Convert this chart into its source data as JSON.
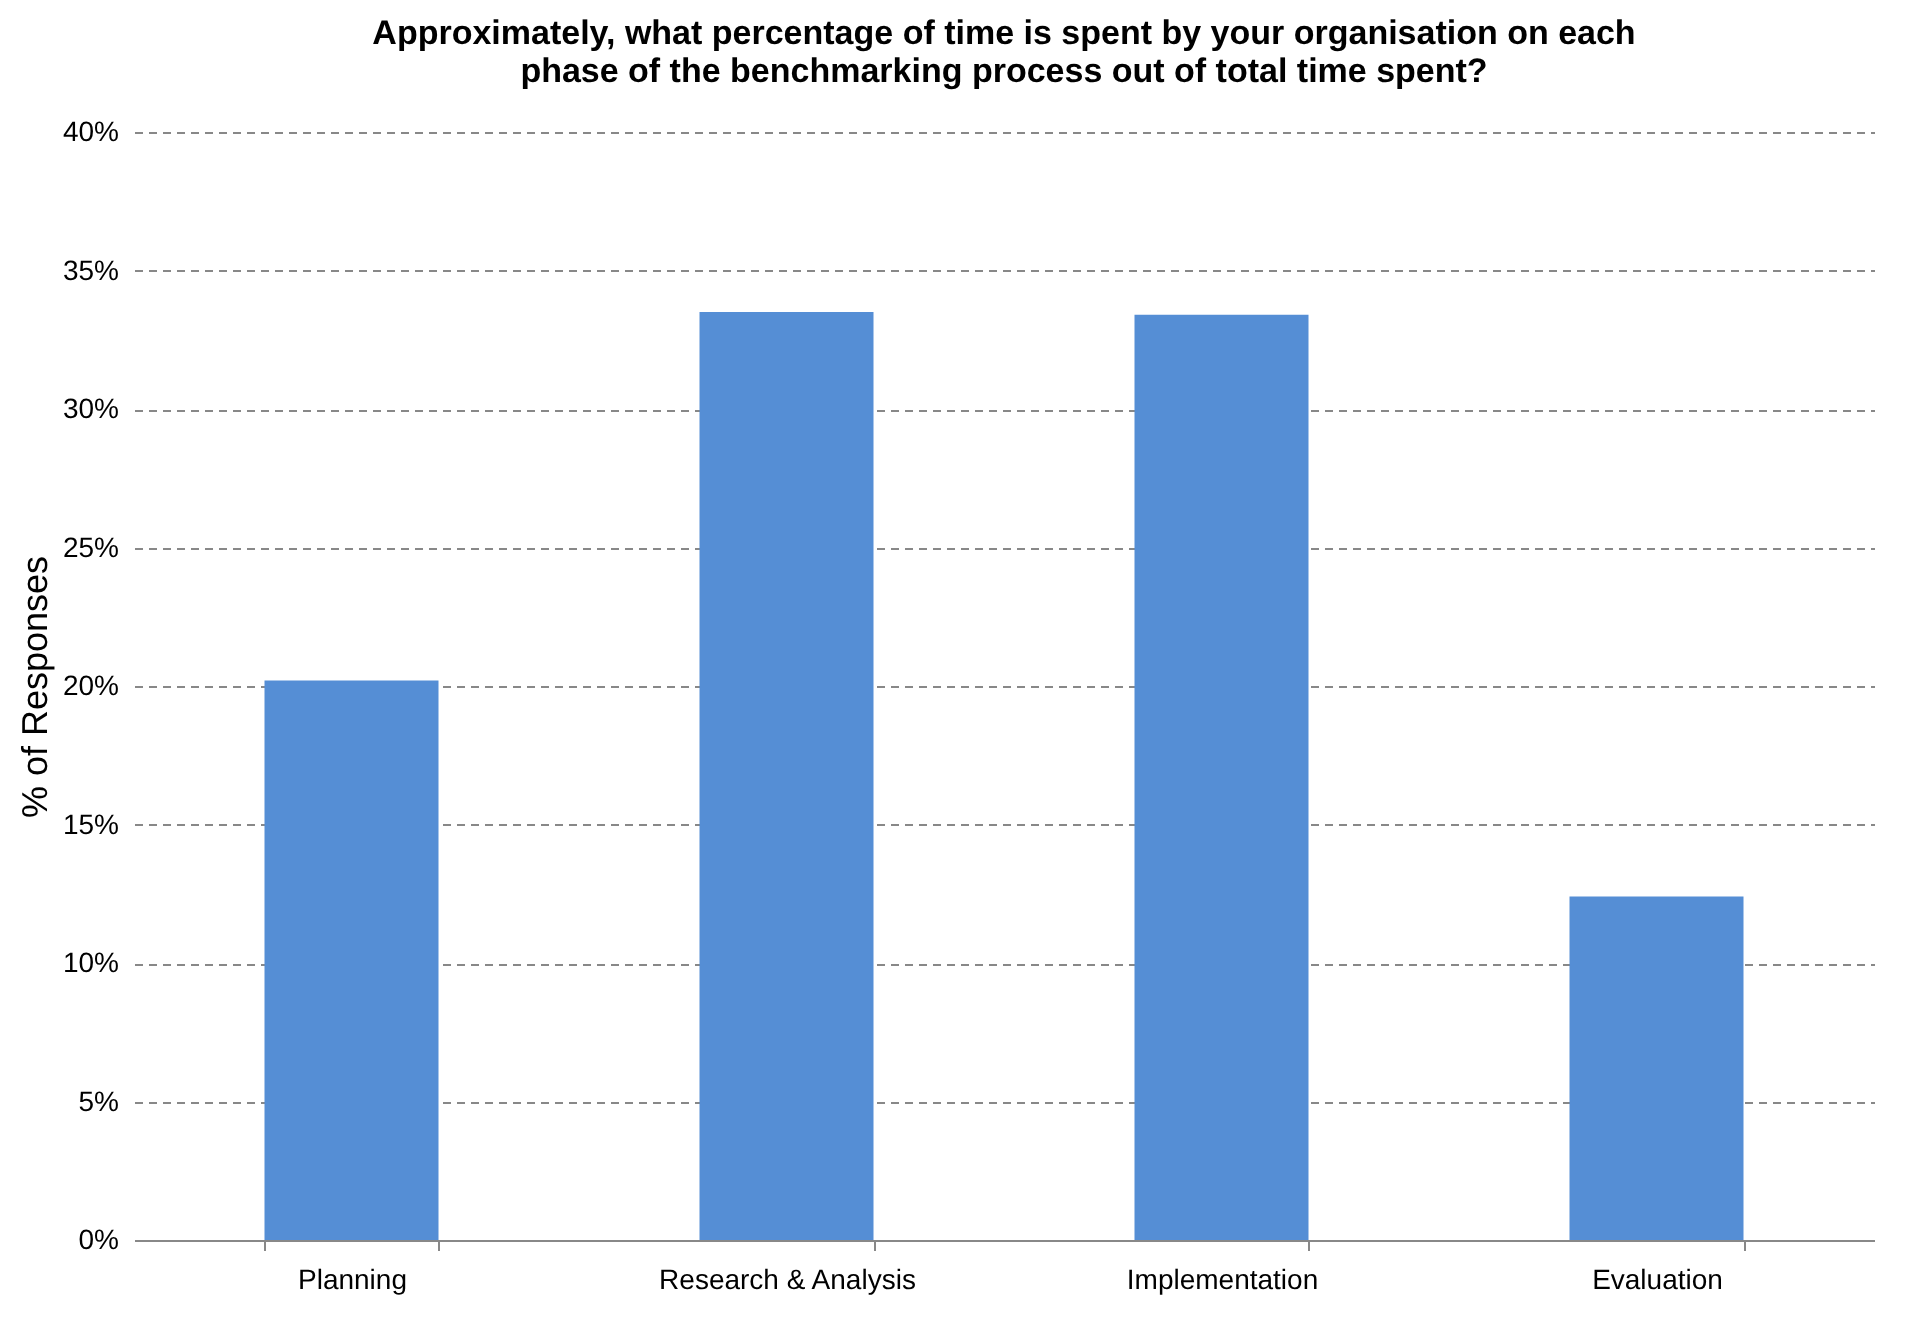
{
  "chart_data": {
    "type": "bar",
    "title": [
      "Approximately, what percentage of time is spent by your organisation on each",
      "phase of the benchmarking process out of total time spent?"
    ],
    "ylabel": "% of Responses",
    "categories": [
      "Planning",
      "Research & Analysis",
      "Implementation",
      "Evaluation"
    ],
    "values": [
      20.2,
      33.5,
      33.4,
      12.4
    ],
    "color": "#558ed5",
    "ylim": [
      0,
      40
    ],
    "yticks": [
      {
        "value": 0,
        "label": "0%"
      },
      {
        "value": 5,
        "label": "5%"
      },
      {
        "value": 10,
        "label": "10%"
      },
      {
        "value": 15,
        "label": "15%"
      },
      {
        "value": 20,
        "label": "20%"
      },
      {
        "value": 25,
        "label": "25%"
      },
      {
        "value": 30,
        "label": "30%"
      },
      {
        "value": 35,
        "label": "35%"
      },
      {
        "value": 40,
        "label": "40%"
      }
    ],
    "grid": "y"
  }
}
